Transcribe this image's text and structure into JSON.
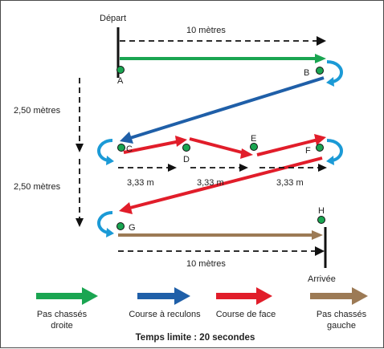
{
  "start_label": "Départ",
  "finish_label": "Arrivée",
  "points": {
    "A": "A",
    "B": "B",
    "C": "C",
    "D": "D",
    "E": "E",
    "F": "F",
    "G": "G",
    "H": "H"
  },
  "distances": {
    "top": "10 mètres",
    "bottom": "10 mètres",
    "gap_1": "2,50 mètres",
    "gap_2": "2,50 mètres",
    "seg_1": "3,33 m",
    "seg_2": "3,33 m",
    "seg_3": "3,33 m"
  },
  "legend": [
    {
      "label": "Pas chassés\ndroite",
      "color": "#1aa551"
    },
    {
      "label": "Course à reculons",
      "color": "#1f5fa8"
    },
    {
      "label": "Course de face",
      "color": "#e11d2a"
    },
    {
      "label": "Pas chassés\ngauche",
      "color": "#9c7a55"
    }
  ],
  "footer": "Temps limite : 20 secondes",
  "colors": {
    "green": "#1aa551",
    "blue": "#1f5fa8",
    "red": "#e11d2a",
    "brown": "#9c7a55",
    "turn": "#1b9ad6",
    "cone": "#1aa551"
  }
}
